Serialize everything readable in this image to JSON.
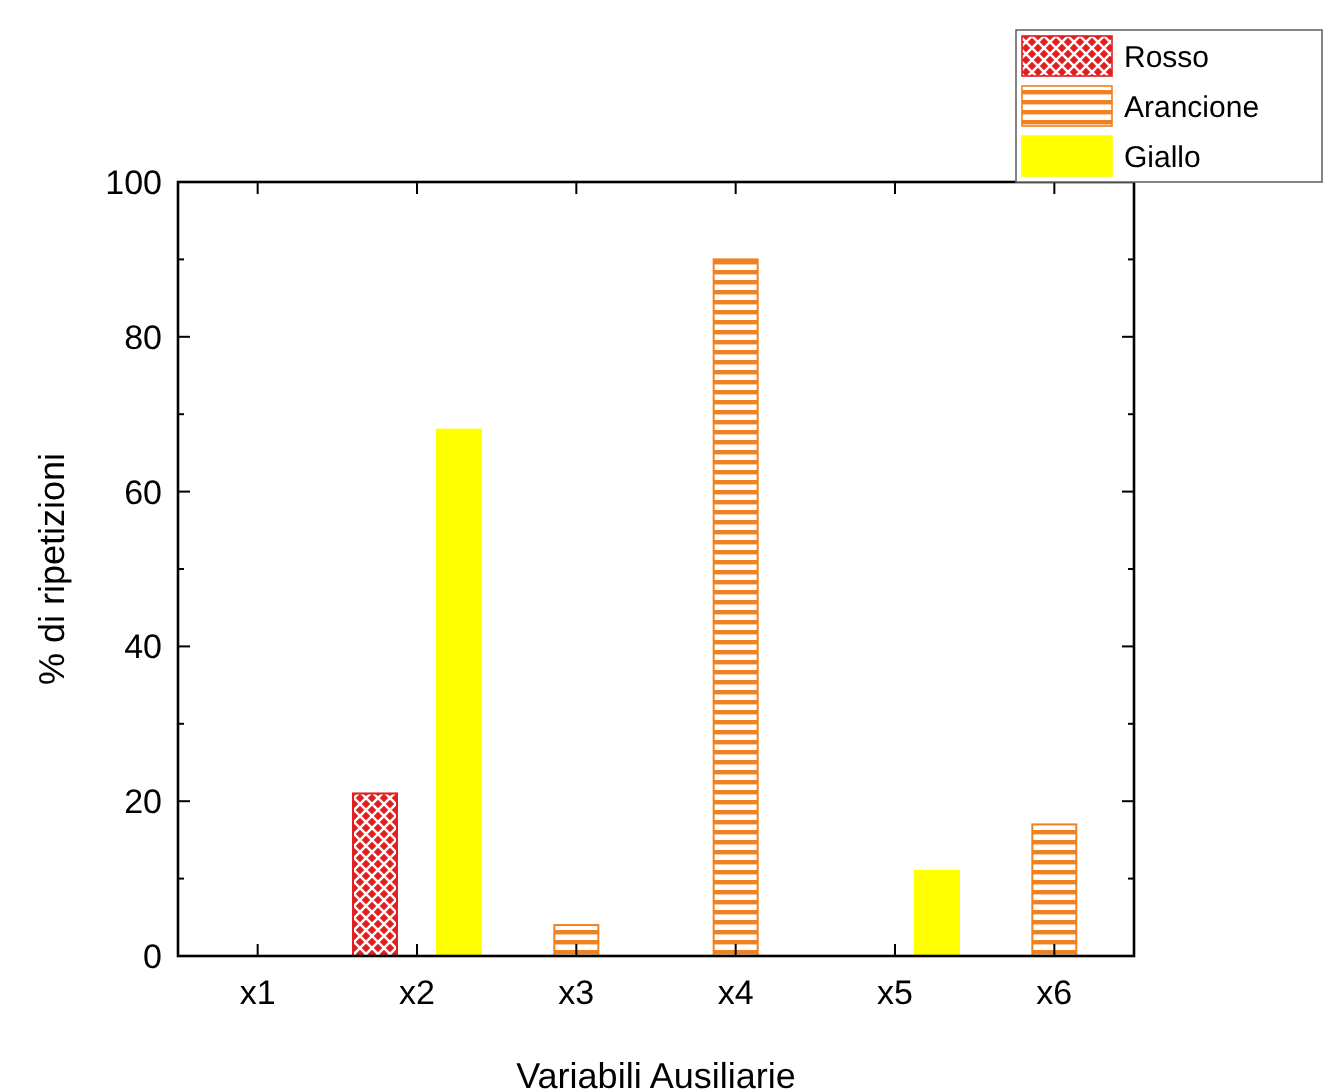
{
  "chart_data": {
    "type": "bar",
    "xlabel": "Variabili Ausiliarie",
    "ylabel": "% di ripetizioni",
    "categories": [
      "x1",
      "x2",
      "x3",
      "x4",
      "x5",
      "x6"
    ],
    "series": [
      {
        "name": "Rosso",
        "color": "#e02020",
        "values": [
          null,
          21,
          null,
          null,
          null,
          null
        ]
      },
      {
        "name": "Arancione",
        "color": "#f08020",
        "values": [
          null,
          null,
          4,
          90,
          null,
          17
        ]
      },
      {
        "name": "Giallo",
        "color": "#ffff00",
        "values": [
          null,
          68,
          null,
          null,
          11,
          null
        ]
      }
    ],
    "ylim": [
      0,
      100
    ],
    "yticks": [
      0,
      20,
      40,
      60,
      80,
      100
    ],
    "legend": "top right"
  }
}
